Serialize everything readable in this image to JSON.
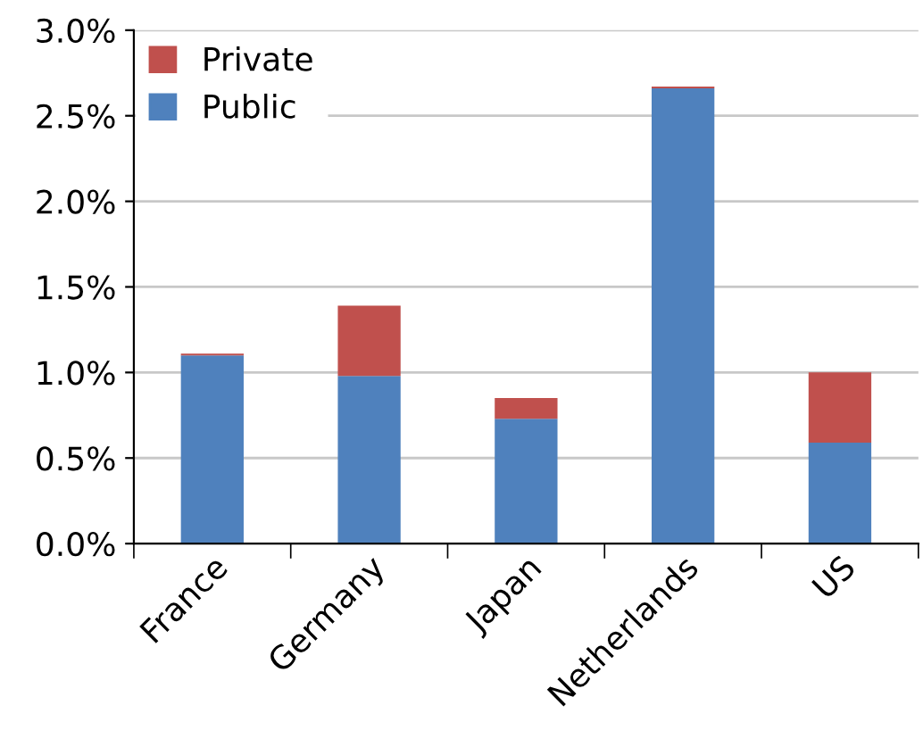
{
  "chart_data": {
    "type": "bar",
    "stacked": true,
    "categories": [
      "France",
      "Germany",
      "Japan",
      "Netherlands",
      "US"
    ],
    "series": [
      {
        "name": "Public",
        "color": "#4f81bd",
        "values": [
          1.1,
          0.98,
          0.73,
          2.66,
          0.59
        ]
      },
      {
        "name": "Private",
        "color": "#c0504d",
        "values": [
          0.01,
          0.41,
          0.12,
          0.01,
          0.41
        ]
      }
    ],
    "ylim": [
      0,
      3.0
    ],
    "yticks": [
      {
        "value": 0,
        "label": "0.0%"
      },
      {
        "value": 0.5,
        "label": "0.5%"
      },
      {
        "value": 1.0,
        "label": "1.0%"
      },
      {
        "value": 1.5,
        "label": "1.5%"
      },
      {
        "value": 2.0,
        "label": "2.0%"
      },
      {
        "value": 2.5,
        "label": "2.5%"
      },
      {
        "value": 3.0,
        "label": "3.0%"
      }
    ],
    "grid": "y",
    "legend": "top left"
  }
}
